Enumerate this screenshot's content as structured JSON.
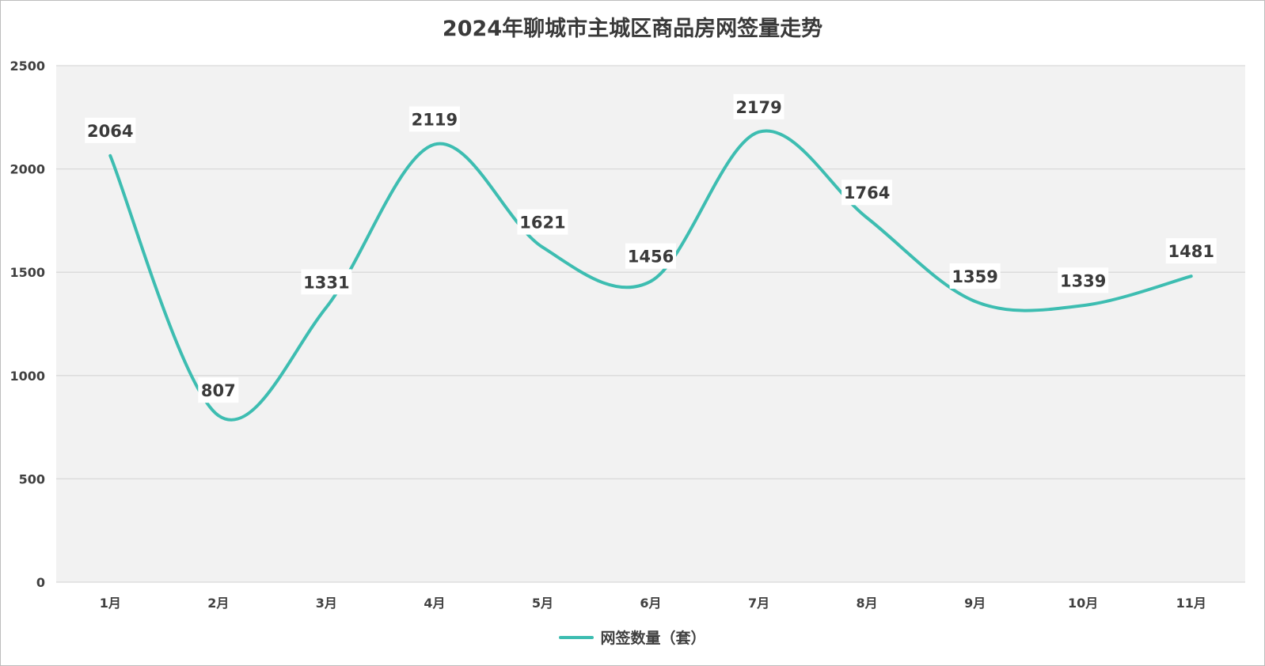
{
  "chart_data": {
    "type": "line",
    "title": "2024年聊城市主城区商品房网签量走势",
    "categories": [
      "1月",
      "2月",
      "3月",
      "4月",
      "5月",
      "6月",
      "7月",
      "8月",
      "9月",
      "10月",
      "11月"
    ],
    "series": [
      {
        "name": "网签数量（套）",
        "values": [
          2064,
          807,
          1331,
          2119,
          1621,
          1456,
          2179,
          1764,
          1359,
          1339,
          1481
        ],
        "color": "#3dbdb1",
        "smooth": true
      }
    ],
    "ylim": [
      0,
      2500
    ],
    "yticks": [
      0,
      500,
      1000,
      1500,
      2000,
      2500
    ],
    "grid": true,
    "legend": "bottom",
    "data_labels": true,
    "plot_background": "#f2f2f2",
    "gridline_color": "#d9d9d9"
  }
}
